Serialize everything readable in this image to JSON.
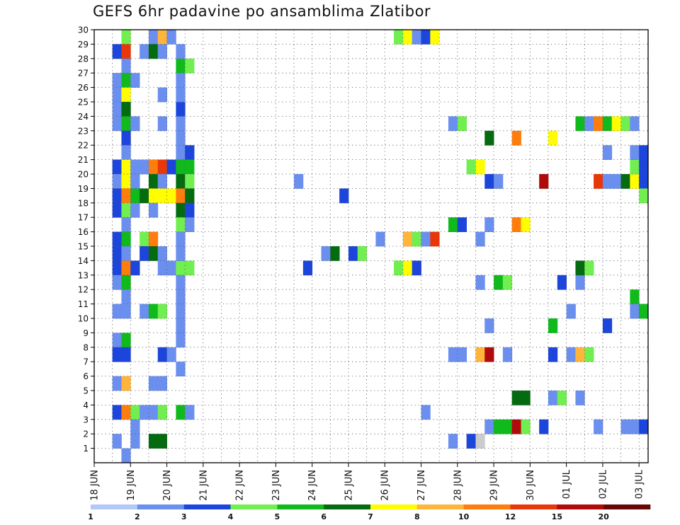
{
  "chart_data": {
    "type": "heatmap",
    "title": "GEFS 6hr padavine po ansamblima Zlatibor",
    "xlabel": "",
    "ylabel": "",
    "y_range": [
      0,
      30
    ],
    "y_ticks": [
      1,
      2,
      3,
      4,
      5,
      6,
      7,
      8,
      9,
      10,
      11,
      12,
      13,
      14,
      15,
      16,
      17,
      18,
      19,
      20,
      21,
      22,
      23,
      24,
      25,
      26,
      27,
      28,
      29,
      30
    ],
    "x_ticks": [
      "18 JUN",
      "19 JUN",
      "20 JUN",
      "21 JUN",
      "22 JUN",
      "23 JUN",
      "24 JUN",
      "25 JUN",
      "26 JUN",
      "27 JUN",
      "28 JUN",
      "29 JUN",
      "30 JUN",
      "01 JUL",
      "02 JUL",
      "03 JUL"
    ],
    "x_steps_per_day": 4,
    "x_total_steps": 61,
    "grid": true,
    "legend": {
      "placement": "bottom",
      "labels": [
        "1",
        "2",
        "3",
        "4",
        "5",
        "6",
        "7",
        "8",
        "10",
        "12",
        "15",
        "20"
      ],
      "colors": [
        "#b2c8f7",
        "#6b8fef",
        "#1c45dc",
        "#72ef50",
        "#10ba1c",
        "#046b10",
        "#fffd00",
        "#ffb43c",
        "#ff7d0c",
        "#e8380a",
        "#b00a0a",
        "#6a0606"
      ]
    },
    "cells": [
      [
        2,
        1,
        1
      ],
      [
        3,
        29,
        3
      ],
      [
        2,
        28,
        2
      ],
      [
        3,
        28,
        9
      ],
      [
        3,
        27,
        1
      ],
      [
        2,
        26,
        1
      ],
      [
        3,
        26,
        4
      ],
      [
        4,
        26,
        1
      ],
      [
        2,
        25,
        1
      ],
      [
        3,
        25,
        6
      ],
      [
        2,
        24,
        1
      ],
      [
        3,
        24,
        5
      ],
      [
        2,
        23,
        1
      ],
      [
        3,
        23,
        4
      ],
      [
        4,
        23,
        1
      ],
      [
        3,
        22,
        2
      ],
      [
        3,
        21,
        1
      ],
      [
        2,
        20,
        2
      ],
      [
        3,
        20,
        6
      ],
      [
        4,
        20,
        1
      ],
      [
        2,
        19,
        1
      ],
      [
        3,
        19,
        6
      ],
      [
        4,
        19,
        1
      ],
      [
        2,
        18,
        2
      ],
      [
        3,
        18,
        8
      ],
      [
        4,
        18,
        4
      ],
      [
        2,
        17,
        2
      ],
      [
        3,
        17,
        3
      ],
      [
        4,
        17,
        1
      ],
      [
        3,
        16,
        1
      ],
      [
        2,
        15,
        2
      ],
      [
        3,
        15,
        4
      ],
      [
        2,
        14,
        2
      ],
      [
        3,
        14,
        1
      ],
      [
        2,
        13,
        2
      ],
      [
        3,
        13,
        8
      ],
      [
        4,
        13,
        2
      ],
      [
        2,
        12,
        1
      ],
      [
        3,
        12,
        4
      ],
      [
        2,
        10,
        1
      ],
      [
        3,
        10,
        1
      ],
      [
        3,
        11,
        1
      ],
      [
        2,
        8,
        1
      ],
      [
        3,
        8,
        4
      ],
      [
        2,
        7,
        2
      ],
      [
        3,
        7,
        2
      ],
      [
        2,
        5,
        1
      ],
      [
        3,
        5,
        7
      ],
      [
        2,
        3,
        2
      ],
      [
        3,
        3,
        8
      ],
      [
        4,
        3,
        3
      ],
      [
        4,
        2,
        1
      ],
      [
        4,
        1,
        1
      ],
      [
        3,
        0,
        1
      ],
      [
        6,
        29,
        1
      ],
      [
        7,
        29,
        7
      ],
      [
        8,
        29,
        1
      ],
      [
        5,
        28,
        1
      ],
      [
        6,
        28,
        5
      ],
      [
        7,
        28,
        1
      ],
      [
        9,
        27,
        4
      ],
      [
        10,
        27,
        3
      ],
      [
        7,
        25,
        1
      ],
      [
        7,
        23,
        1
      ],
      [
        9,
        24,
        2
      ],
      [
        9,
        23,
        1
      ],
      [
        9,
        21,
        1
      ],
      [
        10,
        21,
        2
      ],
      [
        5,
        20,
        1
      ],
      [
        6,
        20,
        8
      ],
      [
        7,
        20,
        9
      ],
      [
        8,
        20,
        2
      ],
      [
        9,
        20,
        4
      ],
      [
        10,
        20,
        4
      ],
      [
        6,
        19,
        5
      ],
      [
        7,
        19,
        1
      ],
      [
        9,
        19,
        5
      ],
      [
        10,
        19,
        3
      ],
      [
        5,
        18,
        5
      ],
      [
        6,
        18,
        6
      ],
      [
        7,
        18,
        6
      ],
      [
        8,
        18,
        6
      ],
      [
        9,
        18,
        8
      ],
      [
        10,
        18,
        5
      ],
      [
        6,
        17,
        1
      ],
      [
        9,
        17,
        5
      ],
      [
        10,
        17,
        2
      ],
      [
        9,
        16,
        3
      ],
      [
        10,
        16,
        1
      ],
      [
        5,
        15,
        3
      ],
      [
        6,
        15,
        8
      ],
      [
        5,
        14,
        2
      ],
      [
        6,
        14,
        5
      ],
      [
        7,
        14,
        1
      ],
      [
        7,
        13,
        1
      ],
      [
        8,
        13,
        1
      ],
      [
        9,
        13,
        3
      ],
      [
        10,
        13,
        3
      ],
      [
        9,
        11,
        1
      ],
      [
        5,
        10,
        1
      ],
      [
        6,
        10,
        4
      ],
      [
        7,
        10,
        3
      ],
      [
        9,
        10,
        1
      ],
      [
        7,
        7,
        2
      ],
      [
        8,
        7,
        1
      ],
      [
        6,
        5,
        1
      ],
      [
        7,
        5,
        1
      ],
      [
        5,
        3,
        1
      ],
      [
        6,
        3,
        1
      ],
      [
        7,
        3,
        3
      ],
      [
        9,
        3,
        4
      ],
      [
        10,
        3,
        1
      ],
      [
        6,
        1,
        5
      ],
      [
        7,
        1,
        5
      ],
      [
        9,
        6,
        1
      ],
      [
        9,
        8,
        1
      ],
      [
        9,
        9,
        1
      ],
      [
        9,
        12,
        1
      ],
      [
        9,
        14,
        1
      ],
      [
        9,
        15,
        1
      ],
      [
        9,
        22,
        1
      ],
      [
        9,
        25,
        1
      ],
      [
        9,
        26,
        1
      ],
      [
        9,
        28,
        1
      ],
      [
        22,
        19,
        1
      ],
      [
        23,
        13,
        2
      ],
      [
        25,
        14,
        1
      ],
      [
        26,
        14,
        5
      ],
      [
        27,
        18,
        2
      ],
      [
        28,
        14,
        2
      ],
      [
        29,
        14,
        3
      ],
      [
        31,
        15,
        1
      ],
      [
        33,
        13,
        3
      ],
      [
        34,
        13,
        6
      ],
      [
        35,
        13,
        2
      ],
      [
        34,
        15,
        7
      ],
      [
        35,
        15,
        3
      ],
      [
        36,
        15,
        1
      ],
      [
        37,
        15,
        9
      ],
      [
        33,
        29,
        3
      ],
      [
        34,
        29,
        6
      ],
      [
        35,
        29,
        1
      ],
      [
        36,
        29,
        2
      ],
      [
        37,
        29,
        6
      ],
      [
        36,
        3,
        1
      ],
      [
        39,
        23,
        1
      ],
      [
        40,
        23,
        3
      ],
      [
        39,
        16,
        4
      ],
      [
        40,
        16,
        2
      ],
      [
        39,
        7,
        1
      ],
      [
        40,
        7,
        1
      ],
      [
        39,
        1,
        1
      ],
      [
        41,
        1,
        2
      ],
      [
        42,
        1,
        12
      ],
      [
        41,
        20,
        3
      ],
      [
        42,
        20,
        6
      ],
      [
        42,
        15,
        1
      ],
      [
        42,
        12,
        1
      ],
      [
        42,
        7,
        7
      ],
      [
        43,
        7,
        10
      ],
      [
        43,
        2,
        1
      ],
      [
        44,
        2,
        4
      ],
      [
        45,
        2,
        4
      ],
      [
        46,
        2,
        10
      ],
      [
        47,
        2,
        3
      ],
      [
        43,
        22,
        5
      ],
      [
        43,
        19,
        2
      ],
      [
        44,
        19,
        1
      ],
      [
        43,
        16,
        1
      ],
      [
        43,
        9,
        1
      ],
      [
        44,
        12,
        4
      ],
      [
        45,
        12,
        3
      ],
      [
        45,
        7,
        1
      ],
      [
        46,
        22,
        8
      ],
      [
        46,
        16,
        8
      ],
      [
        47,
        16,
        6
      ],
      [
        46,
        4,
        5
      ],
      [
        47,
        4,
        5
      ],
      [
        49,
        2,
        2
      ],
      [
        49,
        19,
        10
      ],
      [
        50,
        22,
        6
      ],
      [
        50,
        9,
        4
      ],
      [
        50,
        7,
        2
      ],
      [
        50,
        4,
        1
      ],
      [
        51,
        4,
        3
      ],
      [
        51,
        12,
        2
      ],
      [
        52,
        10,
        1
      ],
      [
        52,
        7,
        1
      ],
      [
        53,
        7,
        7
      ],
      [
        54,
        7,
        3
      ],
      [
        53,
        4,
        1
      ],
      [
        53,
        12,
        1
      ],
      [
        53,
        13,
        5
      ],
      [
        54,
        13,
        3
      ],
      [
        53,
        23,
        4
      ],
      [
        54,
        23,
        1
      ],
      [
        55,
        23,
        8
      ],
      [
        56,
        23,
        4
      ],
      [
        57,
        23,
        6
      ],
      [
        58,
        23,
        3
      ],
      [
        59,
        23,
        1
      ],
      [
        55,
        19,
        9
      ],
      [
        56,
        19,
        1
      ],
      [
        57,
        19,
        1
      ],
      [
        58,
        19,
        5
      ],
      [
        59,
        19,
        6
      ],
      [
        60,
        19,
        2
      ],
      [
        55,
        2,
        1
      ],
      [
        56,
        21,
        1
      ],
      [
        56,
        9,
        2
      ],
      [
        58,
        2,
        1
      ],
      [
        59,
        2,
        1
      ],
      [
        60,
        2,
        2
      ],
      [
        59,
        11,
        4
      ],
      [
        59,
        10,
        1
      ],
      [
        60,
        10,
        4
      ],
      [
        59,
        20,
        3
      ],
      [
        60,
        20,
        2
      ],
      [
        59,
        21,
        1
      ],
      [
        60,
        21,
        2
      ],
      [
        60,
        18,
        3
      ]
    ]
  }
}
